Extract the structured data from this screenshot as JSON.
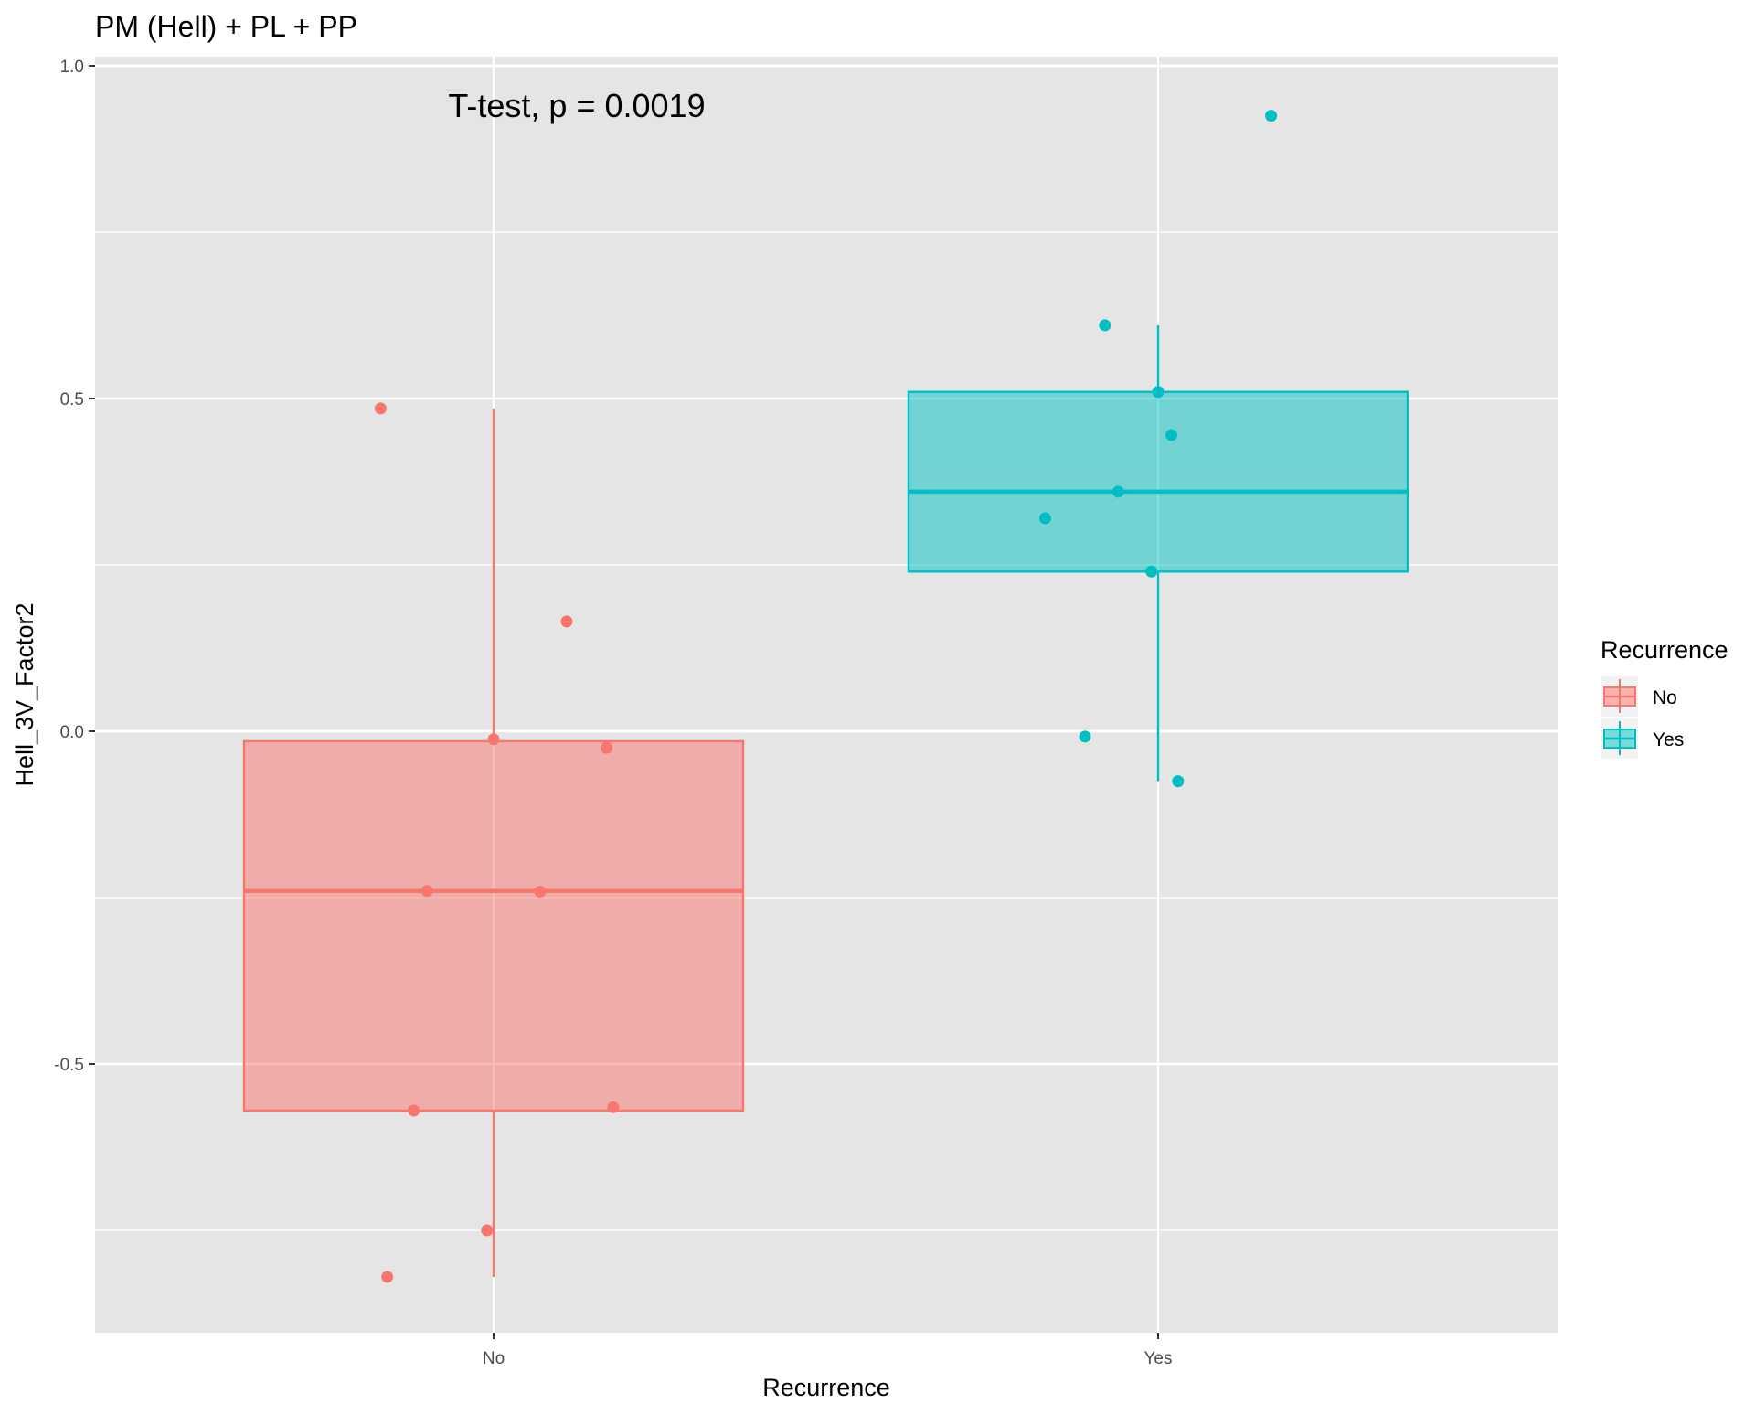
{
  "chart_data": {
    "type": "boxplot",
    "title": "PM (Hell) + PL + PP",
    "annotation": "T-test, p = 0.0019",
    "xlabel": "Recurrence",
    "ylabel": "Hell_3V_Factor2",
    "categories": [
      "No",
      "Yes"
    ],
    "ylim": [
      -0.9,
      1.01
    ],
    "yticks": [
      -0.5,
      0.0,
      0.5,
      1.0
    ],
    "ytick_labels": [
      "-0.5",
      "0.0",
      "0.5",
      "1.0"
    ],
    "grid": true,
    "legend": {
      "title": "Recurrence",
      "position": "right",
      "entries": [
        "No",
        "Yes"
      ]
    },
    "colors": {
      "No": "#F8766D",
      "Yes": "#00BFC4",
      "panel": "#E5E5E5",
      "grid": "#FFFFFF"
    },
    "series": [
      {
        "name": "No",
        "box": {
          "whisker_low": -0.82,
          "q1": -0.57,
          "median": -0.24,
          "q3": -0.015,
          "whisker_high": 0.485
        },
        "points": [
          {
            "x": -0.17,
            "y": 0.485
          },
          {
            "x": 0.11,
            "y": 0.165
          },
          {
            "x": 0.0,
            "y": -0.012
          },
          {
            "x": 0.17,
            "y": -0.025
          },
          {
            "x": -0.1,
            "y": -0.24
          },
          {
            "x": 0.07,
            "y": -0.241
          },
          {
            "x": -0.12,
            "y": -0.57
          },
          {
            "x": 0.18,
            "y": -0.565
          },
          {
            "x": -0.01,
            "y": -0.75
          },
          {
            "x": -0.16,
            "y": -0.82
          }
        ]
      },
      {
        "name": "Yes",
        "box": {
          "whisker_low": -0.075,
          "q1": 0.24,
          "median": 0.36,
          "q3": 0.51,
          "whisker_high": 0.61
        },
        "points": [
          {
            "x": 0.17,
            "y": 0.925
          },
          {
            "x": -0.08,
            "y": 0.61
          },
          {
            "x": 0.0,
            "y": 0.51
          },
          {
            "x": 0.02,
            "y": 0.445
          },
          {
            "x": -0.06,
            "y": 0.36
          },
          {
            "x": -0.17,
            "y": 0.32
          },
          {
            "x": -0.01,
            "y": 0.24
          },
          {
            "x": -0.11,
            "y": -0.008
          },
          {
            "x": 0.03,
            "y": -0.075
          }
        ]
      }
    ]
  }
}
